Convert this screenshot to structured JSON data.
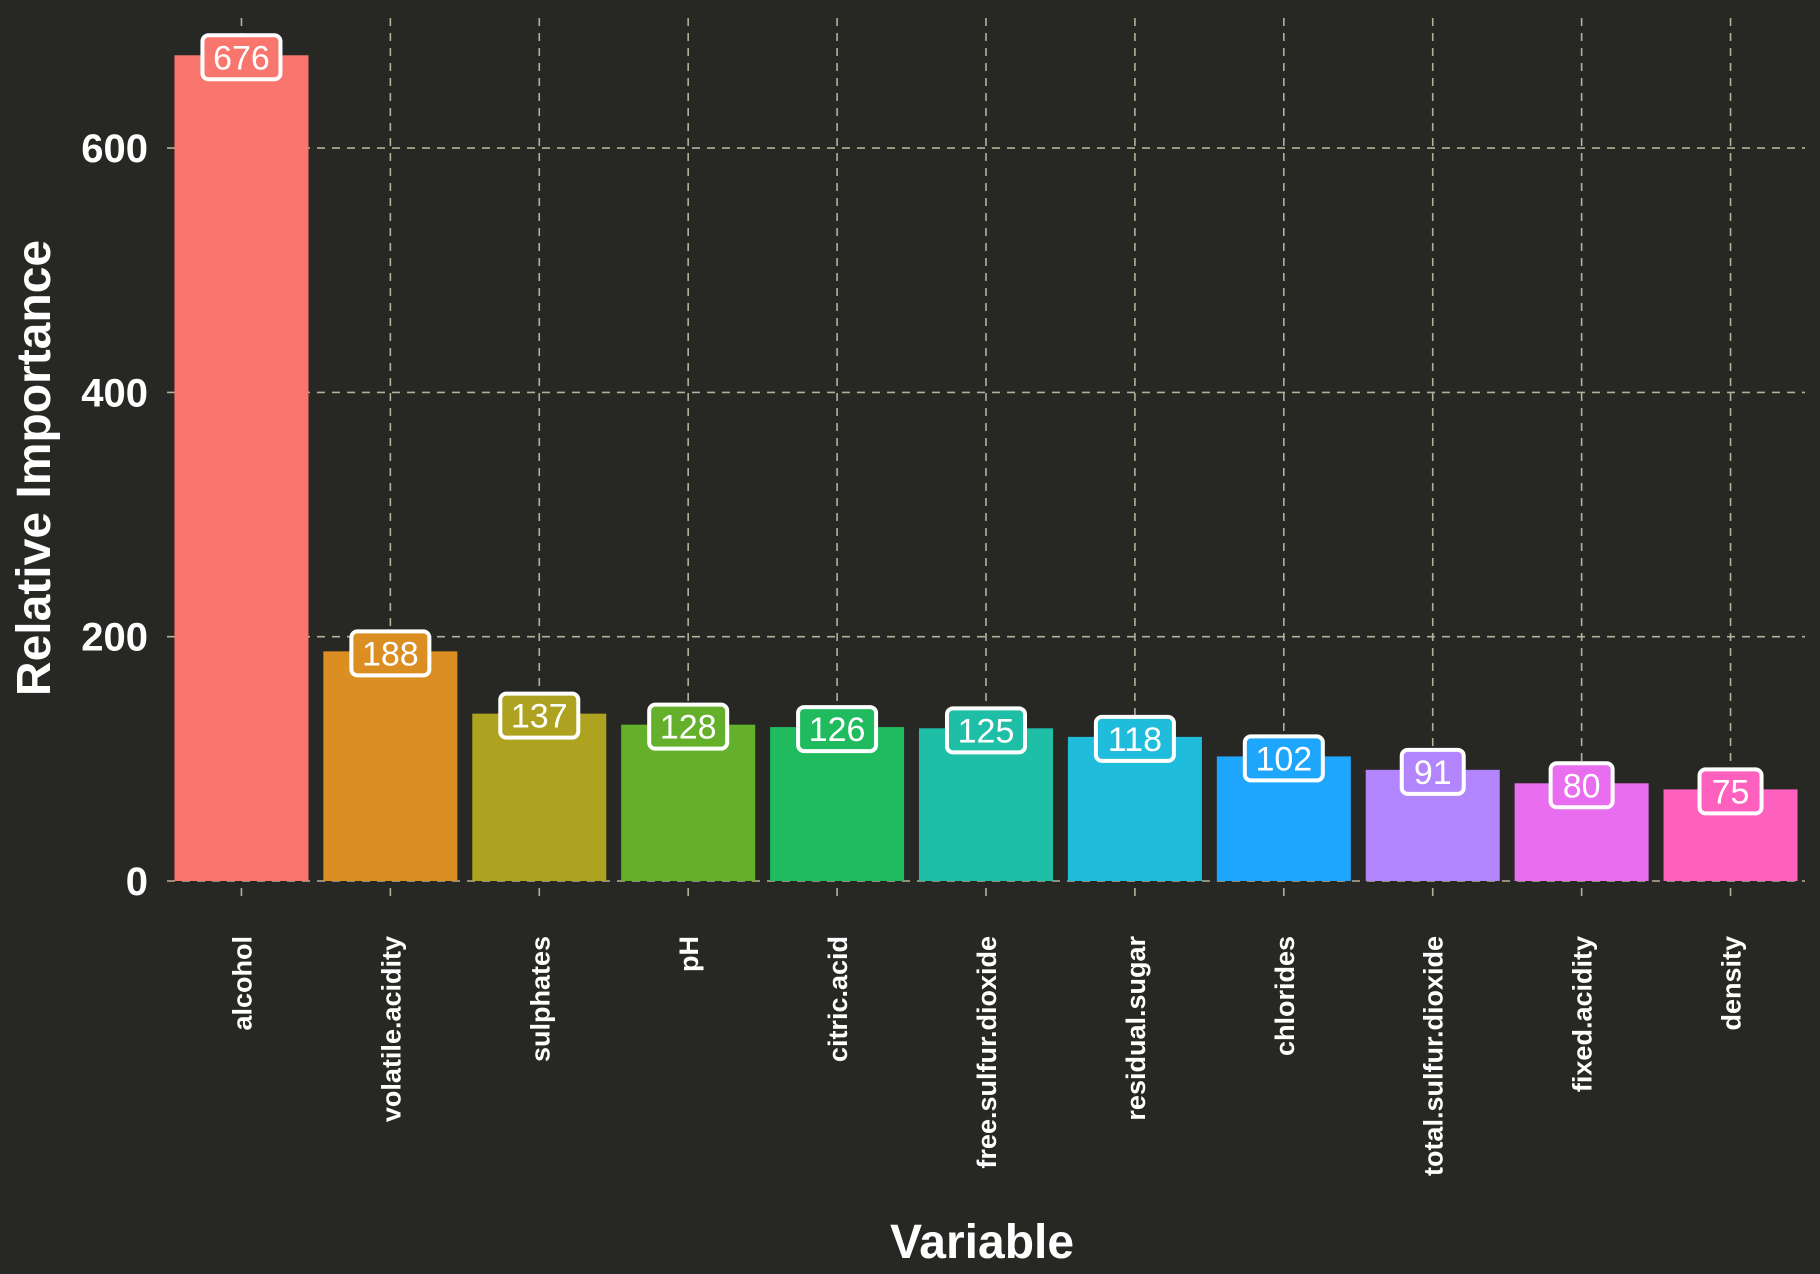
{
  "chart_data": {
    "type": "bar",
    "title": "",
    "xlabel": "Variable",
    "ylabel": "Relative Importance",
    "ylim": [
      0,
      700
    ],
    "yticks": [
      0,
      200,
      400,
      600
    ],
    "grid": true,
    "legend": "none",
    "categories": [
      "alcohol",
      "volatile.acidity",
      "sulphates",
      "pH",
      "citric.acid",
      "free.sulfur.dioxide",
      "residual.sugar",
      "chlorides",
      "total.sulfur.dioxide",
      "fixed.acidity",
      "density"
    ],
    "values": [
      676,
      188,
      137,
      128,
      126,
      125,
      118,
      102,
      91,
      80,
      75
    ],
    "labels": [
      "676",
      "188",
      "137",
      "128",
      "126",
      "125",
      "118",
      "102",
      "91",
      "80",
      "75"
    ],
    "colors": [
      "#F8766D",
      "#DB8E22",
      "#AEA221",
      "#64B02A",
      "#1FBB5E",
      "#1FBFA7",
      "#1FBCDB",
      "#1EA6FC",
      "#B285FC",
      "#E86DEF",
      "#FD61BD"
    ]
  }
}
